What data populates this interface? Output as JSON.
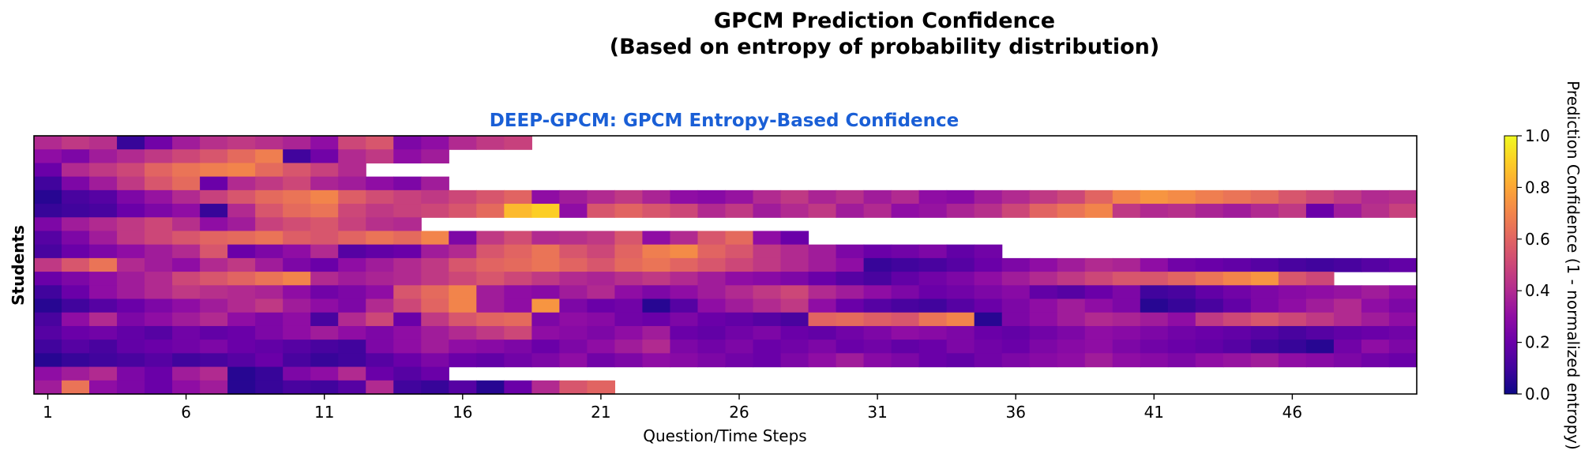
{
  "figure": {
    "title_line1": "GPCM Prediction Confidence",
    "title_line2": "(Based on entropy of probability distribution)"
  },
  "chart_data": {
    "type": "heatmap",
    "title": "DEEP-GPCM: GPCM Entropy-Based Confidence",
    "xlabel": "Question/Time Steps",
    "ylabel": "Students",
    "x_ticks": [
      1,
      6,
      11,
      16,
      21,
      26,
      31,
      36,
      41,
      46
    ],
    "n_columns": 50,
    "n_rows": 19,
    "row_lengths": [
      18,
      15,
      12,
      15,
      50,
      50,
      14,
      28,
      35,
      50,
      47,
      50,
      50,
      50,
      50,
      50,
      50,
      15,
      21
    ],
    "colormap": "plasma",
    "colorbar": {
      "label": "Prediction Confidence (1 - normalized entropy)",
      "range": [
        0,
        1
      ],
      "ticks": [
        "0.0",
        "0.2",
        "0.4",
        "0.6",
        "0.8",
        "1.0"
      ]
    },
    "title_color": "#1a5fd6",
    "values": [
      [
        0.4,
        0.45,
        0.42,
        0.08,
        0.22,
        0.35,
        0.42,
        0.45,
        0.42,
        0.38,
        0.3,
        0.5,
        0.55,
        0.25,
        0.3,
        0.4,
        0.45,
        0.48
      ],
      [
        0.3,
        0.25,
        0.35,
        0.4,
        0.45,
        0.5,
        0.55,
        0.62,
        0.68,
        0.1,
        0.22,
        0.4,
        0.45,
        0.3,
        0.35
      ],
      [
        0.2,
        0.4,
        0.45,
        0.5,
        0.6,
        0.65,
        0.68,
        0.7,
        0.62,
        0.55,
        0.48,
        0.4
      ],
      [
        0.1,
        0.25,
        0.35,
        0.45,
        0.55,
        0.62,
        0.2,
        0.4,
        0.45,
        0.5,
        0.38,
        0.35,
        0.3,
        0.25,
        0.35
      ],
      [
        0.05,
        0.12,
        0.15,
        0.25,
        0.32,
        0.4,
        0.48,
        0.55,
        0.62,
        0.65,
        0.7,
        0.58,
        0.52,
        0.48,
        0.45,
        0.5,
        0.55,
        0.6,
        0.3,
        0.35,
        0.4,
        0.45,
        0.38,
        0.3,
        0.28,
        0.32,
        0.4,
        0.45,
        0.38,
        0.42,
        0.35,
        0.4,
        0.3,
        0.28,
        0.35,
        0.4,
        0.45,
        0.5,
        0.6,
        0.7,
        0.75,
        0.72,
        0.68,
        0.65,
        0.62,
        0.55,
        0.5,
        0.45,
        0.4,
        0.42
      ],
      [
        0.08,
        0.1,
        0.12,
        0.2,
        0.25,
        0.3,
        0.08,
        0.4,
        0.55,
        0.62,
        0.65,
        0.5,
        0.45,
        0.48,
        0.5,
        0.55,
        0.62,
        0.85,
        0.9,
        0.3,
        0.55,
        0.6,
        0.55,
        0.5,
        0.4,
        0.45,
        0.35,
        0.4,
        0.45,
        0.35,
        0.4,
        0.3,
        0.32,
        0.38,
        0.42,
        0.5,
        0.6,
        0.65,
        0.7,
        0.45,
        0.4,
        0.42,
        0.38,
        0.35,
        0.4,
        0.45,
        0.2,
        0.35,
        0.42,
        0.48
      ],
      [
        0.25,
        0.35,
        0.4,
        0.45,
        0.5,
        0.42,
        0.3,
        0.35,
        0.48,
        0.52,
        0.55,
        0.48,
        0.42,
        0.4
      ],
      [
        0.15,
        0.25,
        0.35,
        0.45,
        0.5,
        0.55,
        0.6,
        0.62,
        0.65,
        0.58,
        0.55,
        0.6,
        0.65,
        0.62,
        0.7,
        0.25,
        0.45,
        0.52,
        0.4,
        0.42,
        0.45,
        0.55,
        0.3,
        0.4,
        0.55,
        0.62,
        0.3,
        0.2
      ],
      [
        0.12,
        0.2,
        0.25,
        0.3,
        0.35,
        0.4,
        0.55,
        0.2,
        0.25,
        0.3,
        0.4,
        0.15,
        0.18,
        0.2,
        0.35,
        0.4,
        0.55,
        0.6,
        0.65,
        0.55,
        0.5,
        0.6,
        0.68,
        0.72,
        0.6,
        0.55,
        0.45,
        0.4,
        0.35,
        0.25,
        0.2,
        0.22,
        0.25,
        0.18,
        0.22
      ],
      [
        0.45,
        0.55,
        0.65,
        0.4,
        0.35,
        0.3,
        0.4,
        0.45,
        0.35,
        0.25,
        0.2,
        0.3,
        0.35,
        0.4,
        0.45,
        0.55,
        0.6,
        0.62,
        0.65,
        0.6,
        0.55,
        0.62,
        0.65,
        0.6,
        0.55,
        0.5,
        0.45,
        0.4,
        0.35,
        0.3,
        0.08,
        0.1,
        0.12,
        0.15,
        0.2,
        0.25,
        0.3,
        0.35,
        0.4,
        0.38,
        0.3,
        0.22,
        0.2,
        0.18,
        0.15,
        0.12,
        0.1,
        0.12,
        0.15,
        0.18
      ],
      [
        0.2,
        0.25,
        0.3,
        0.35,
        0.4,
        0.5,
        0.55,
        0.6,
        0.65,
        0.7,
        0.4,
        0.35,
        0.38,
        0.4,
        0.45,
        0.5,
        0.55,
        0.5,
        0.45,
        0.4,
        0.38,
        0.42,
        0.45,
        0.4,
        0.35,
        0.3,
        0.28,
        0.25,
        0.2,
        0.15,
        0.12,
        0.18,
        0.22,
        0.25,
        0.3,
        0.35,
        0.4,
        0.45,
        0.5,
        0.55,
        0.55,
        0.6,
        0.65,
        0.7,
        0.75,
        0.55,
        0.5
      ],
      [
        0.1,
        0.2,
        0.3,
        0.35,
        0.4,
        0.45,
        0.42,
        0.4,
        0.38,
        0.3,
        0.22,
        0.25,
        0.3,
        0.55,
        0.62,
        0.7,
        0.35,
        0.3,
        0.28,
        0.35,
        0.4,
        0.3,
        0.25,
        0.3,
        0.35,
        0.4,
        0.45,
        0.5,
        0.4,
        0.35,
        0.3,
        0.25,
        0.2,
        0.22,
        0.25,
        0.28,
        0.18,
        0.15,
        0.2,
        0.25,
        0.1,
        0.12,
        0.18,
        0.22,
        0.25,
        0.28,
        0.3,
        0.32,
        0.35,
        0.3
      ],
      [
        0.05,
        0.1,
        0.15,
        0.2,
        0.25,
        0.3,
        0.35,
        0.4,
        0.45,
        0.35,
        0.3,
        0.25,
        0.4,
        0.5,
        0.6,
        0.7,
        0.35,
        0.3,
        0.75,
        0.25,
        0.2,
        0.22,
        0.05,
        0.15,
        0.3,
        0.35,
        0.4,
        0.45,
        0.3,
        0.2,
        0.15,
        0.12,
        0.1,
        0.15,
        0.2,
        0.25,
        0.3,
        0.35,
        0.3,
        0.25,
        0.05,
        0.08,
        0.12,
        0.18,
        0.25,
        0.3,
        0.35,
        0.4,
        0.3,
        0.25
      ],
      [
        0.12,
        0.3,
        0.4,
        0.25,
        0.3,
        0.35,
        0.4,
        0.3,
        0.25,
        0.3,
        0.12,
        0.4,
        0.5,
        0.2,
        0.45,
        0.55,
        0.6,
        0.62,
        0.25,
        0.3,
        0.28,
        0.22,
        0.2,
        0.25,
        0.2,
        0.18,
        0.15,
        0.12,
        0.6,
        0.62,
        0.58,
        0.55,
        0.65,
        0.7,
        0.05,
        0.25,
        0.3,
        0.35,
        0.4,
        0.38,
        0.35,
        0.3,
        0.45,
        0.5,
        0.55,
        0.5,
        0.45,
        0.4,
        0.35,
        0.3
      ],
      [
        0.15,
        0.2,
        0.22,
        0.18,
        0.15,
        0.22,
        0.18,
        0.2,
        0.25,
        0.3,
        0.35,
        0.3,
        0.25,
        0.3,
        0.35,
        0.4,
        0.45,
        0.5,
        0.3,
        0.28,
        0.25,
        0.3,
        0.35,
        0.2,
        0.18,
        0.22,
        0.25,
        0.2,
        0.18,
        0.22,
        0.25,
        0.3,
        0.28,
        0.25,
        0.2,
        0.18,
        0.22,
        0.25,
        0.3,
        0.28,
        0.25,
        0.22,
        0.2,
        0.18,
        0.15,
        0.12,
        0.15,
        0.18,
        0.2,
        0.22
      ],
      [
        0.1,
        0.15,
        0.12,
        0.18,
        0.2,
        0.22,
        0.25,
        0.2,
        0.18,
        0.15,
        0.12,
        0.1,
        0.25,
        0.3,
        0.35,
        0.3,
        0.28,
        0.25,
        0.2,
        0.25,
        0.3,
        0.35,
        0.4,
        0.25,
        0.22,
        0.25,
        0.2,
        0.22,
        0.25,
        0.2,
        0.22,
        0.18,
        0.2,
        0.25,
        0.22,
        0.2,
        0.25,
        0.28,
        0.3,
        0.25,
        0.22,
        0.2,
        0.18,
        0.15,
        0.1,
        0.08,
        0.05,
        0.22,
        0.3,
        0.25
      ],
      [
        0.05,
        0.08,
        0.1,
        0.12,
        0.15,
        0.1,
        0.12,
        0.15,
        0.2,
        0.12,
        0.08,
        0.1,
        0.15,
        0.2,
        0.25,
        0.2,
        0.18,
        0.22,
        0.25,
        0.3,
        0.22,
        0.25,
        0.3,
        0.28,
        0.25,
        0.22,
        0.2,
        0.25,
        0.3,
        0.35,
        0.28,
        0.25,
        0.2,
        0.18,
        0.22,
        0.25,
        0.28,
        0.3,
        0.35,
        0.3,
        0.28,
        0.25,
        0.3,
        0.32,
        0.35,
        0.3,
        0.28,
        0.25,
        0.22,
        0.2
      ],
      [
        0.3,
        0.35,
        0.4,
        0.25,
        0.2,
        0.35,
        0.4,
        0.05,
        0.08,
        0.25,
        0.3,
        0.4,
        0.2,
        0.15,
        0.2
      ],
      [
        0.35,
        0.65,
        0.3,
        0.25,
        0.2,
        0.3,
        0.35,
        0.05,
        0.08,
        0.12,
        0.1,
        0.15,
        0.4,
        0.1,
        0.08,
        0.15,
        0.05,
        0.2,
        0.4,
        0.55,
        0.6
      ]
    ]
  }
}
